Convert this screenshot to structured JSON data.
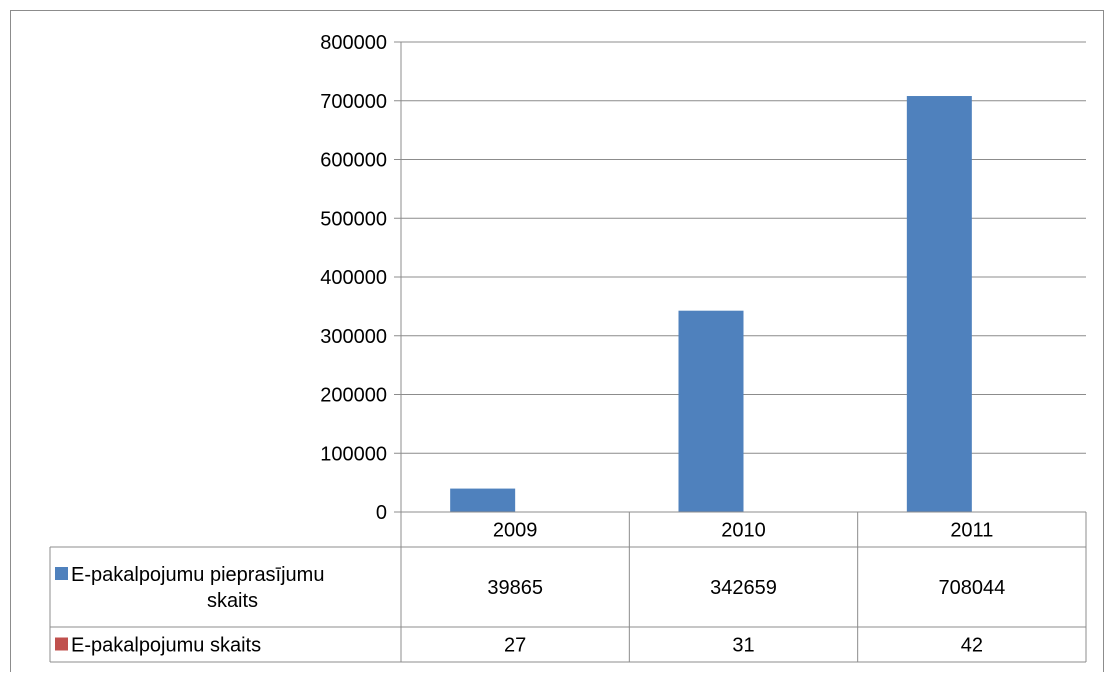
{
  "chart_data": {
    "type": "bar",
    "categories": [
      "2009",
      "2010",
      "2011"
    ],
    "series": [
      {
        "name": "E-pakalpojumu pieprasījumu skaits",
        "label_lines": [
          "E-pakalpojumu pieprasījumu",
          "skaits"
        ],
        "values": [
          39865,
          342659,
          708044
        ],
        "color": "#4f81bd"
      },
      {
        "name": "E-pakalpojumu skaits",
        "label_lines": [
          "E-pakalpojumu skaits"
        ],
        "values": [
          27,
          31,
          42
        ],
        "color": "#c0504d"
      }
    ],
    "title": "",
    "xlabel": "",
    "ylabel": "",
    "ylim": [
      0,
      800000
    ],
    "yticks": [
      "0",
      "100000",
      "200000",
      "300000",
      "400000",
      "500000",
      "600000",
      "700000",
      "800000"
    ],
    "grid": true,
    "legend": "data-table"
  },
  "colors": {
    "gridline": "#8c8c8c",
    "frame": "#8c8c8c"
  }
}
